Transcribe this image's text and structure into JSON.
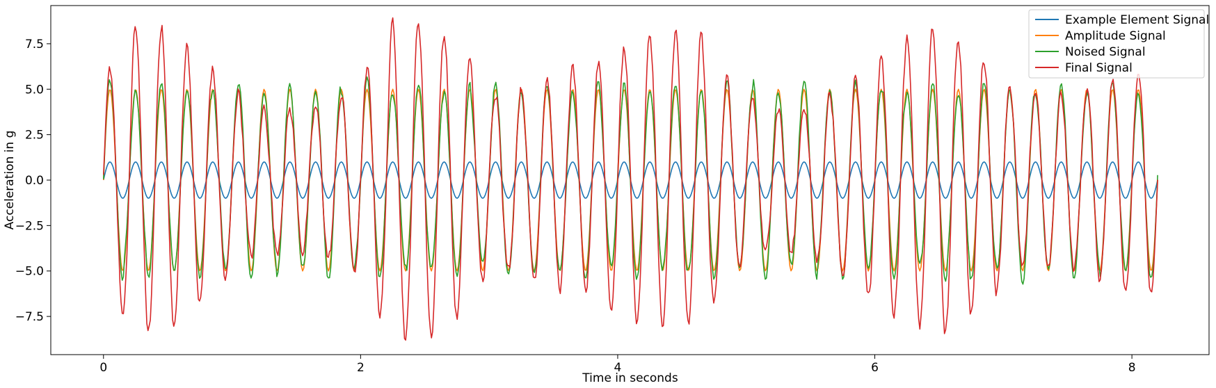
{
  "chart_data": {
    "type": "line",
    "title": "",
    "xlabel": "Time in seconds",
    "ylabel": "Acceleration in g",
    "xlim": [
      -0.41,
      8.6
    ],
    "ylim": [
      -9.6,
      9.6
    ],
    "x_ticks": [
      0,
      2,
      4,
      6,
      8
    ],
    "x_tick_labels": [
      "0",
      "2",
      "4",
      "6",
      "8"
    ],
    "y_ticks": [
      -7.5,
      -5.0,
      -2.5,
      0.0,
      2.5,
      5.0,
      7.5
    ],
    "y_tick_labels": [
      "−7.5",
      "−5.0",
      "−2.5",
      "0.0",
      "2.5",
      "5.0",
      "7.5"
    ],
    "grid": false,
    "legend_position": "top-right",
    "sampling": {
      "t_start": 0,
      "t_end": 8.2,
      "frequency_hz": 5
    },
    "series": [
      {
        "name": "Example Element Signal",
        "color": "#1f77b4",
        "peak_amplitude": 1.0,
        "description_values": "sine, amplitude 1.0 g"
      },
      {
        "name": "Amplitude Signal",
        "color": "#ff7f0e",
        "peak_amplitude": 5.0
      },
      {
        "name": "Noised Signal",
        "color": "#2ca02c",
        "peak_amplitude": 5.5
      },
      {
        "name": "Final Signal",
        "color": "#d62728",
        "peak_amplitude": 8.7
      }
    ],
    "final_signal_envelope": {
      "t": [
        0,
        0.2,
        0.45,
        0.6,
        0.9,
        1.2,
        1.6,
        2.0,
        2.25,
        2.5,
        2.75,
        3.0,
        3.2,
        3.5,
        3.8,
        4.1,
        4.4,
        4.65,
        4.9,
        5.2,
        5.5,
        5.8,
        6.1,
        6.5,
        6.8,
        7.1,
        7.5,
        7.8,
        8.2
      ],
      "amp": [
        5.2,
        8.3,
        8.6,
        7.8,
        5.8,
        4.0,
        3.8,
        5.2,
        8.7,
        8.7,
        7.6,
        5.0,
        5.0,
        5.8,
        6.4,
        7.5,
        8.3,
        8.0,
        5.0,
        4.0,
        4.2,
        5.5,
        7.0,
        8.6,
        7.0,
        5.0,
        4.8,
        5.4,
        6.5
      ]
    }
  }
}
